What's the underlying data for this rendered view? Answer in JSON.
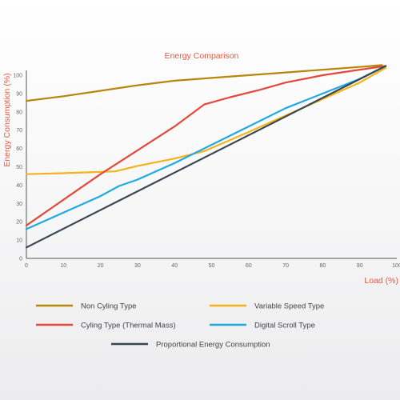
{
  "chart_data": {
    "type": "line",
    "title": "Energy Comparison",
    "xlabel": "Load (%)",
    "ylabel": "Energy Consumption (%)",
    "xlim": [
      0,
      100
    ],
    "ylim": [
      0,
      100
    ],
    "x_ticks": [
      "0",
      "10",
      "20",
      "30",
      "40",
      "50",
      "60",
      "70",
      "80",
      "90",
      "100"
    ],
    "y_ticks": [
      "0",
      "10",
      "20",
      "30",
      "40",
      "50",
      "60",
      "70",
      "80",
      "90",
      "100"
    ],
    "grid": false,
    "legend_position": "bottom",
    "colors": {
      "title": "#e8573f",
      "axis_label": "#e8573f",
      "tick": "#666666",
      "axis_line": "#555555"
    },
    "series": [
      {
        "name": "Non Cyling Type",
        "color": "#b8860b",
        "x": [
          0,
          10,
          20,
          30,
          40,
          50,
          60,
          70,
          80,
          90,
          96
        ],
        "y": [
          86,
          88.5,
          91.5,
          94.5,
          97,
          98.5,
          100,
          101.5,
          103,
          104.5,
          105.5
        ]
      },
      {
        "name": "Variable Speed Type",
        "color": "#f5b21a",
        "x": [
          0,
          10,
          24,
          30,
          40,
          48,
          60,
          70,
          80,
          90,
          97
        ],
        "y": [
          46,
          46.5,
          47.5,
          50.5,
          54.5,
          58.5,
          69,
          78,
          87,
          96,
          104
        ]
      },
      {
        "name": "Cyling Type (Thermal Mass)",
        "color": "#e2493a",
        "x": [
          0,
          10,
          20,
          30,
          40,
          48,
          55,
          63,
          70,
          80,
          90,
          97
        ],
        "y": [
          18,
          32,
          46,
          59,
          72,
          84,
          88,
          92,
          96,
          100,
          103,
          105
        ]
      },
      {
        "name": "Digital Scroll Type",
        "color": "#1fa9e1",
        "x": [
          0,
          10,
          20,
          25,
          30,
          40,
          50,
          60,
          70,
          80,
          90,
          97
        ],
        "y": [
          16,
          25,
          34,
          39.5,
          43,
          52,
          62,
          72,
          82,
          90,
          98,
          105
        ]
      },
      {
        "name": "Proportional Energy Consumption",
        "color": "#37474f",
        "x": [
          0,
          97
        ],
        "y": [
          6,
          105
        ]
      }
    ]
  }
}
